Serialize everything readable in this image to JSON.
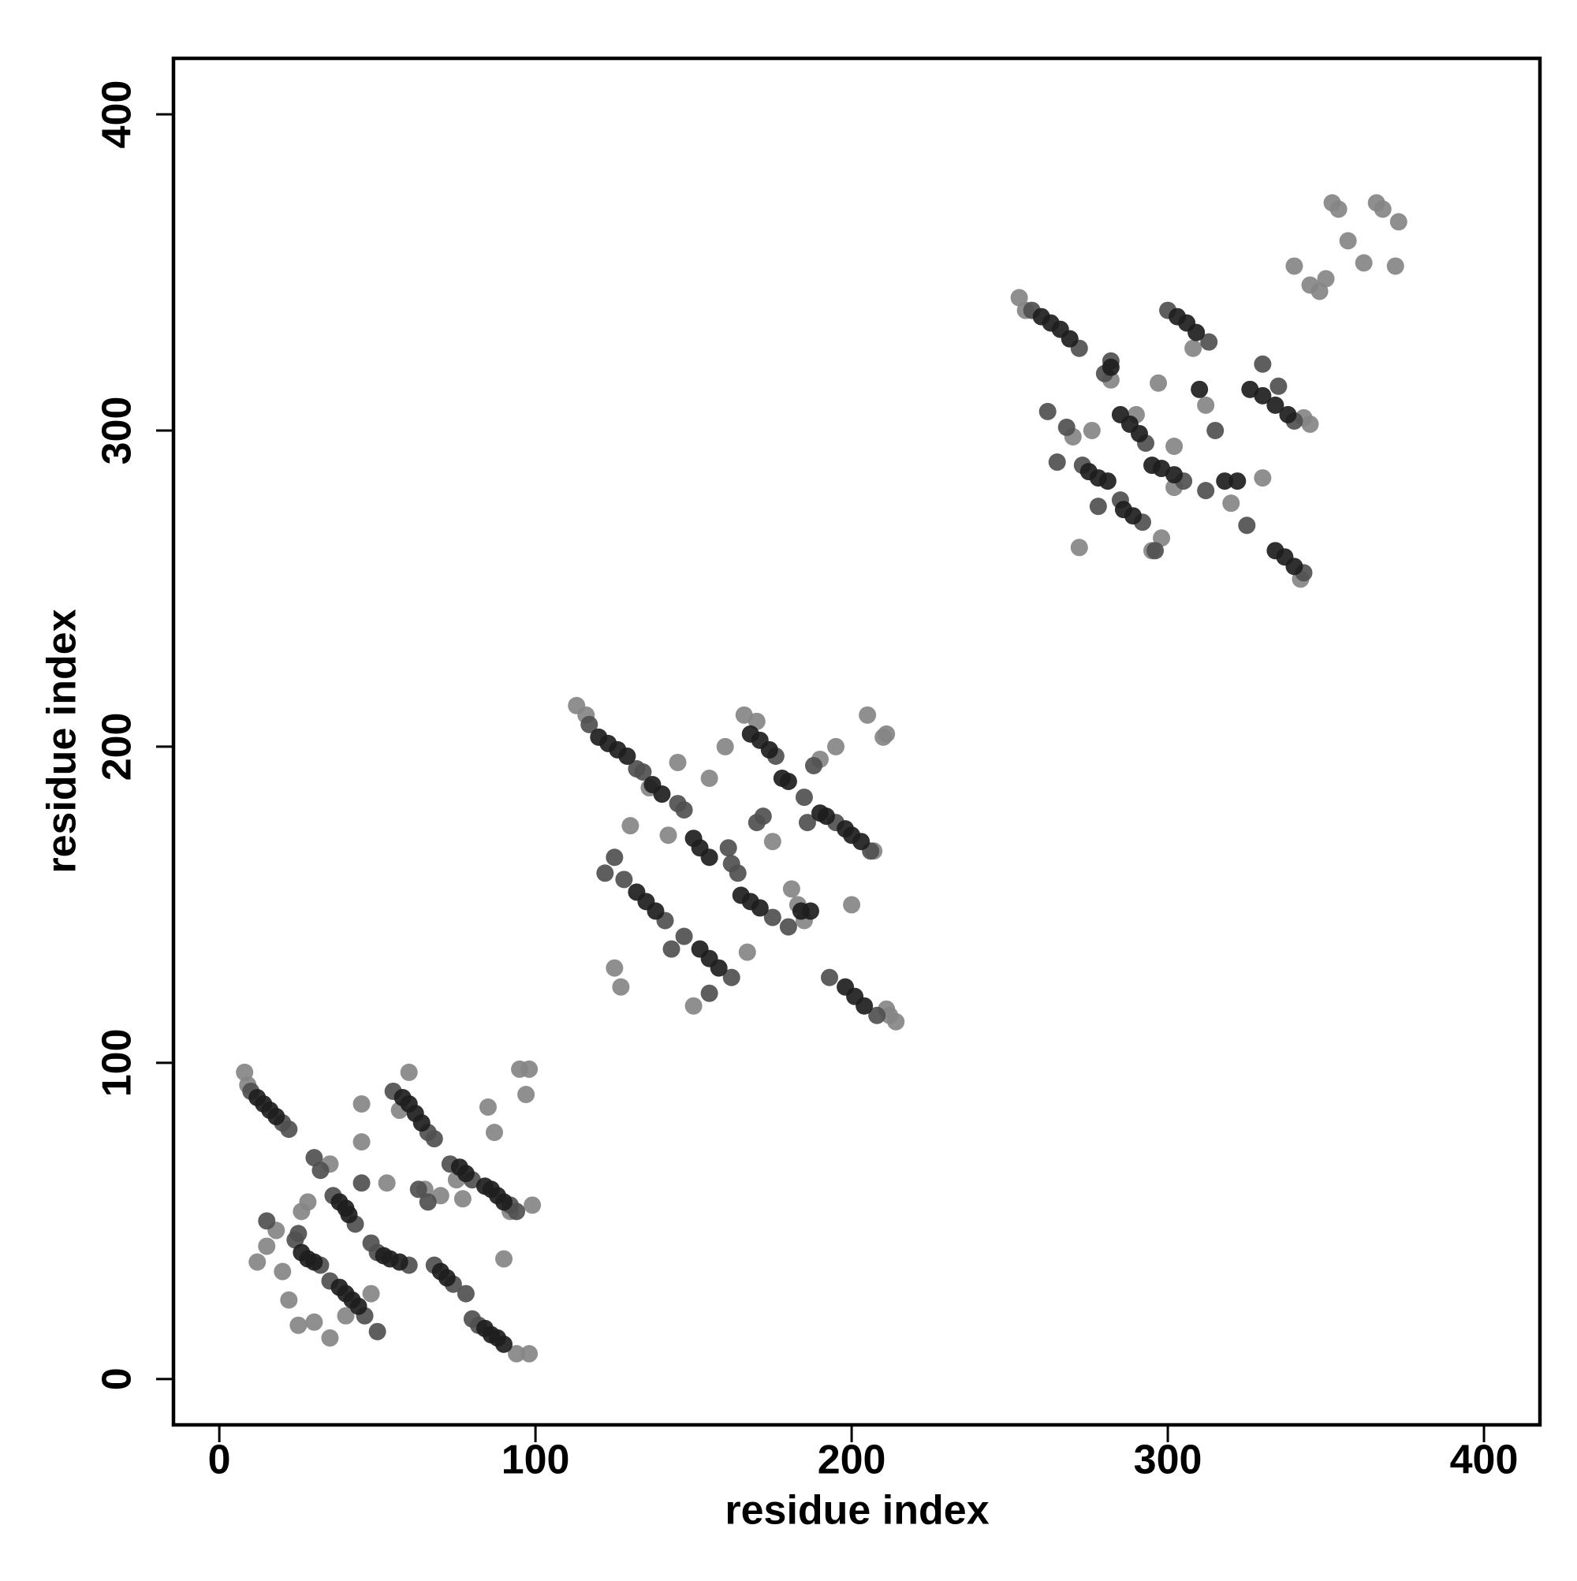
{
  "chart_data": {
    "type": "scatter",
    "xlabel": "residue index",
    "ylabel": "residue index",
    "xlim": [
      -14.5,
      417.7
    ],
    "ylim": [
      -14.5,
      417.7
    ],
    "xticks": [
      0,
      100,
      200,
      300,
      400
    ],
    "yticks": [
      0,
      100,
      200,
      300,
      400
    ],
    "grid": false,
    "series": [
      {
        "color": "#868686",
        "x": [
          8,
          9,
          98,
          95,
          97,
          99,
          92,
          85,
          87,
          90,
          60,
          57,
          45,
          35,
          30,
          25,
          22,
          15,
          12,
          18,
          26,
          35,
          45,
          53,
          75,
          77,
          65,
          70,
          40,
          20,
          28,
          48,
          98,
          94,
          113,
          116,
          205,
          211,
          210,
          207,
          195,
          190,
          211,
          214,
          212,
          166,
          170,
          160,
          155,
          125,
          127,
          130,
          136,
          145,
          183,
          185,
          200,
          175,
          150,
          142,
          167,
          181,
          253,
          255,
          352,
          354,
          366,
          368,
          373,
          372,
          357,
          362,
          345,
          348,
          340,
          350,
          343,
          345,
          342,
          295,
          298,
          272,
          276,
          282,
          302,
          320,
          330,
          312,
          308,
          270,
          290,
          302,
          297
        ],
        "values": [
          97,
          93,
          98,
          98,
          90,
          55,
          53,
          86,
          78,
          38,
          97,
          85,
          87,
          13,
          18,
          17,
          25,
          42,
          37,
          47,
          53,
          68,
          75,
          62,
          63,
          57,
          60,
          58,
          20,
          34,
          56,
          27,
          8,
          8,
          213,
          210,
          210,
          204,
          203,
          167,
          200,
          196,
          117,
          113,
          115,
          210,
          208,
          200,
          190,
          130,
          124,
          175,
          187,
          195,
          150,
          145,
          150,
          170,
          118,
          172,
          135,
          155,
          342,
          338,
          372,
          370,
          372,
          370,
          366,
          352,
          360,
          353,
          346,
          344,
          352,
          348,
          304,
          302,
          253,
          262,
          266,
          263,
          300,
          316,
          295,
          277,
          285,
          308,
          326,
          298,
          305,
          282,
          315
        ]
      },
      {
        "color": "#505050",
        "x": [
          10,
          20,
          22,
          55,
          66,
          68,
          80,
          92,
          94,
          36,
          43,
          48,
          50,
          60,
          24,
          32,
          25,
          35,
          46,
          50,
          80,
          82,
          68,
          74,
          78,
          73,
          45,
          15,
          30,
          32,
          63,
          66,
          117,
          132,
          134,
          145,
          147,
          162,
          164,
          176,
          185,
          195,
          206,
          128,
          141,
          161,
          175,
          147,
          162,
          180,
          193,
          208,
          125,
          143,
          170,
          186,
          155,
          122,
          188,
          172,
          257,
          272,
          280,
          300,
          313,
          340,
          282,
          293,
          305,
          273,
          292,
          312,
          325,
          343,
          285,
          296,
          268,
          278,
          265,
          315,
          330,
          335,
          262
        ],
        "values": [
          91,
          81,
          79,
          91,
          78,
          76,
          63,
          55,
          53,
          58,
          49,
          43,
          40,
          36,
          44,
          36,
          46,
          31,
          20,
          15,
          19,
          17,
          36,
          30,
          27,
          68,
          62,
          50,
          70,
          66,
          60,
          56,
          207,
          193,
          192,
          182,
          180,
          163,
          160,
          197,
          184,
          176,
          167,
          158,
          145,
          168,
          146,
          140,
          127,
          143,
          127,
          115,
          165,
          136,
          176,
          176,
          122,
          160,
          194,
          178,
          338,
          326,
          318,
          338,
          328,
          303,
          322,
          296,
          284,
          289,
          271,
          281,
          270,
          255,
          278,
          262,
          301,
          276,
          290,
          300,
          321,
          314,
          306
        ]
      },
      {
        "color": "#1e1e1e",
        "x": [
          12,
          14,
          16,
          18,
          58,
          60,
          62,
          64,
          84,
          86,
          88,
          90,
          38,
          40,
          41,
          52,
          54,
          57,
          26,
          28,
          30,
          38,
          40,
          42,
          44,
          84,
          86,
          88,
          90,
          70,
          72,
          76,
          78,
          120,
          123,
          126,
          129,
          137,
          140,
          150,
          152,
          155,
          168,
          171,
          174,
          178,
          180,
          190,
          192,
          198,
          200,
          203,
          132,
          135,
          138,
          165,
          168,
          171,
          152,
          155,
          158,
          184,
          187,
          198,
          201,
          204,
          260,
          263,
          266,
          269,
          303,
          306,
          309,
          326,
          330,
          334,
          338,
          285,
          288,
          291,
          295,
          298,
          302,
          275,
          278,
          281,
          286,
          289,
          318,
          322,
          334,
          337,
          340,
          282,
          310
        ],
        "values": [
          89,
          87,
          85,
          83,
          89,
          87,
          84,
          81,
          61,
          60,
          58,
          56,
          56,
          54,
          52,
          39,
          38,
          37,
          40,
          38,
          37,
          29,
          27,
          25,
          23,
          16,
          14,
          13,
          11,
          34,
          32,
          67,
          65,
          203,
          201,
          199,
          197,
          188,
          185,
          171,
          168,
          165,
          204,
          202,
          199,
          190,
          189,
          179,
          178,
          174,
          172,
          170,
          154,
          151,
          148,
          153,
          151,
          149,
          136,
          133,
          130,
          148,
          148,
          124,
          121,
          118,
          336,
          334,
          332,
          329,
          336,
          334,
          331,
          313,
          311,
          308,
          305,
          305,
          302,
          299,
          289,
          288,
          286,
          287,
          285,
          284,
          275,
          273,
          284,
          284,
          262,
          260,
          257,
          320,
          313
        ]
      }
    ]
  }
}
